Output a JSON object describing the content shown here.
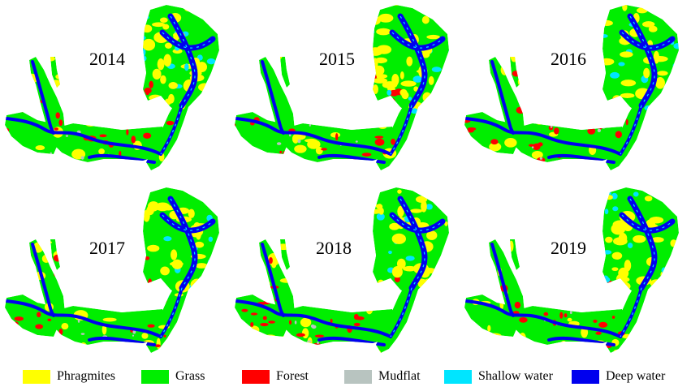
{
  "panels": [
    {
      "year": "2014"
    },
    {
      "year": "2015"
    },
    {
      "year": "2016"
    },
    {
      "year": "2017"
    },
    {
      "year": "2018"
    },
    {
      "year": "2019"
    }
  ],
  "legend": [
    {
      "label": "Phragmites",
      "color": "#ffff00"
    },
    {
      "label": "Grass",
      "color": "#00ee00"
    },
    {
      "label": "Forest",
      "color": "#ff0000"
    },
    {
      "label": "Mudflat",
      "color": "#b8c4c0"
    },
    {
      "label": "Shallow water",
      "color": "#00e5ff"
    },
    {
      "label": "Deep water",
      "color": "#0000ee"
    }
  ]
}
